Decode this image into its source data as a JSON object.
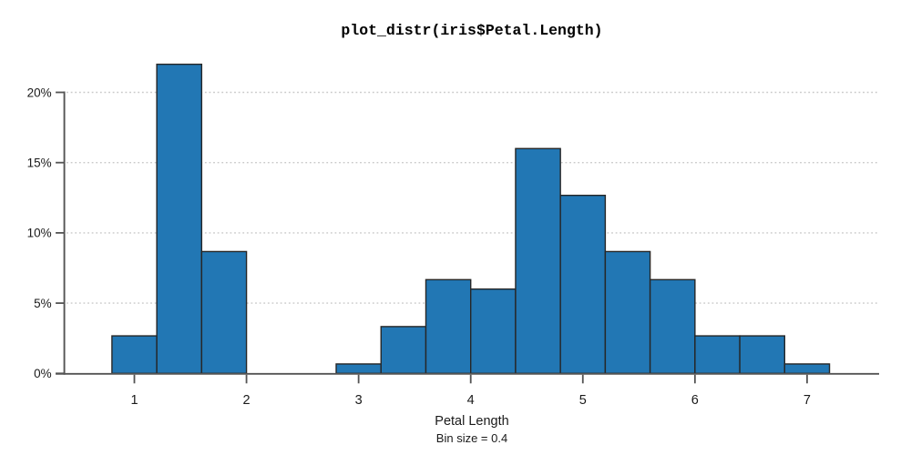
{
  "title": "plot_distr(iris$Petal.Length)",
  "chart_data": {
    "type": "bar",
    "subtype": "histogram",
    "title": "plot_distr(iris$Petal.Length)",
    "xlabel": "Petal Length",
    "xlabel_note": "Bin size = 0.4",
    "bin_size": 0.4,
    "bins": [
      {
        "x0": 0.8,
        "x1": 1.2,
        "percent": 2.67
      },
      {
        "x0": 1.2,
        "x1": 1.6,
        "percent": 22.0
      },
      {
        "x0": 1.6,
        "x1": 2.0,
        "percent": 8.67
      },
      {
        "x0": 2.0,
        "x1": 2.4,
        "percent": 0
      },
      {
        "x0": 2.4,
        "x1": 2.8,
        "percent": 0
      },
      {
        "x0": 2.8,
        "x1": 3.2,
        "percent": 0.67
      },
      {
        "x0": 3.2,
        "x1": 3.6,
        "percent": 3.33
      },
      {
        "x0": 3.6,
        "x1": 4.0,
        "percent": 6.67
      },
      {
        "x0": 4.0,
        "x1": 4.4,
        "percent": 6.0
      },
      {
        "x0": 4.4,
        "x1": 4.8,
        "percent": 16.0
      },
      {
        "x0": 4.8,
        "x1": 5.2,
        "percent": 12.67
      },
      {
        "x0": 5.2,
        "x1": 5.6,
        "percent": 8.67
      },
      {
        "x0": 5.6,
        "x1": 6.0,
        "percent": 6.67
      },
      {
        "x0": 6.0,
        "x1": 6.4,
        "percent": 2.67
      },
      {
        "x0": 6.4,
        "x1": 6.8,
        "percent": 2.67
      },
      {
        "x0": 6.8,
        "x1": 7.2,
        "percent": 0.67
      }
    ],
    "x_ticks": [
      1,
      2,
      3,
      4,
      5,
      6,
      7
    ],
    "y_ticks": [
      {
        "value": 0,
        "label": "0%"
      },
      {
        "value": 5,
        "label": "5%"
      },
      {
        "value": 10,
        "label": "10%"
      },
      {
        "value": 15,
        "label": "15%"
      },
      {
        "value": 20,
        "label": "20%"
      }
    ],
    "xlim": [
      0.39,
      7.64
    ],
    "ylim": [
      0,
      22
    ],
    "grid": "horizontal dotted at y ticks (5,10,15,20)",
    "legend": "none",
    "colors": {
      "bar_fill": "#2277b4",
      "bar_edge": "#262626",
      "axis": "#545454",
      "grid": "#c9c9c9",
      "tick_label": "#1a1a1a",
      "title_text": "#000000",
      "background": "#ffffff"
    }
  }
}
